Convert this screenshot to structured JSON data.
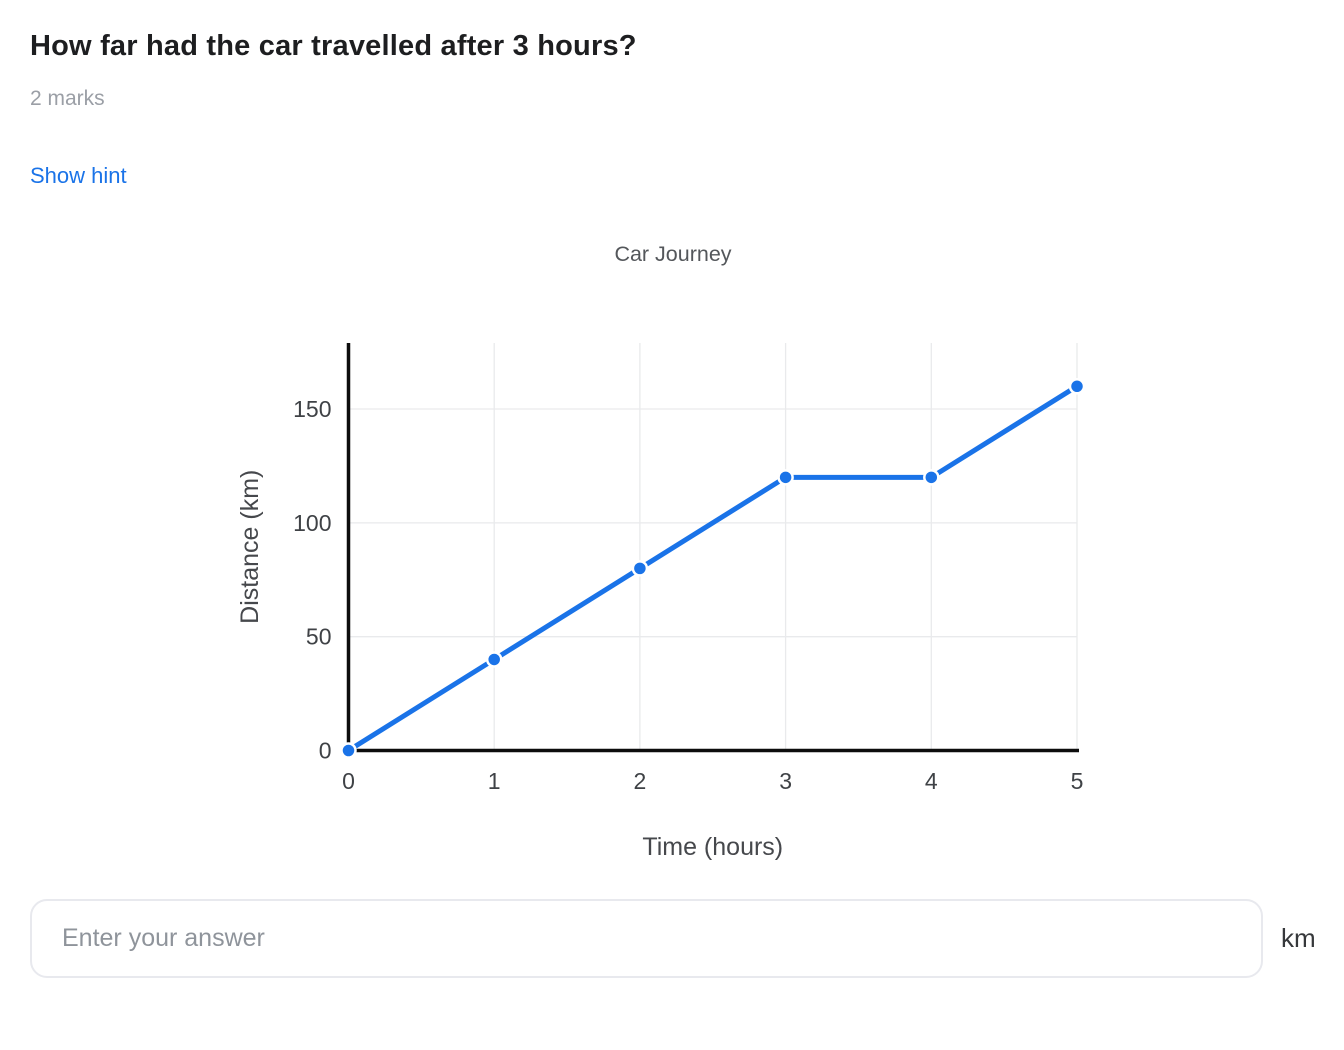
{
  "header": {
    "title": "How far had the car travelled after 3 hours?",
    "marks": "2 marks",
    "hint_label": "Show hint"
  },
  "answer": {
    "placeholder": "Enter your answer",
    "unit": "km"
  },
  "colors": {
    "accent": "#1a73e8",
    "title_text": "#1d1e20",
    "muted_text": "#9b9fa6"
  },
  "chart_data": {
    "type": "line",
    "title": "Car Journey",
    "xlabel": "Time (hours)",
    "ylabel": "Distance (km)",
    "x": [
      0,
      1,
      2,
      3,
      4,
      5
    ],
    "series": [
      {
        "name": "Distance",
        "values": [
          0,
          40,
          80,
          120,
          120,
          160
        ]
      }
    ],
    "xticks": [
      0,
      1,
      2,
      3,
      4,
      5
    ],
    "yticks": [
      0,
      50,
      100,
      150
    ],
    "xlim": [
      0,
      5
    ],
    "ylim": [
      0,
      179
    ],
    "grid": true,
    "legend": false,
    "line_color": "#1a73e8",
    "marker": "circle",
    "axis_color": "#0d0d0d",
    "grid_color": "#e9eaec",
    "tick_color": "#3f4246",
    "label_color": "#46484c",
    "title_color": "#54575b"
  }
}
